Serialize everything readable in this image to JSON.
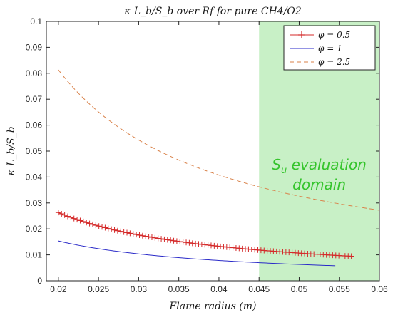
{
  "chart_data": {
    "type": "line",
    "title": "κ L_b/S_b over Rf for pure CH4/O2",
    "xlabel": "Flame radius (m)",
    "ylabel": "κ L_b/S_b",
    "xlim": [
      0.0185,
      0.06
    ],
    "ylim": [
      0,
      0.1
    ],
    "x_ticks": [
      "0.02",
      "0.025",
      "0.03",
      "0.035",
      "0.04",
      "0.045",
      "0.05",
      "0.055",
      "0.06"
    ],
    "y_ticks": [
      "0",
      "0.01",
      "0.02",
      "0.03",
      "0.04",
      "0.05",
      "0.06",
      "0.07",
      "0.08",
      "0.09",
      "0.1"
    ],
    "grid": false,
    "legend_position": "top-right",
    "series": [
      {
        "name": "φ = 0.5",
        "color": "#d42a2a",
        "style": "solid-with-plus-markers",
        "x_range": [
          0.02,
          0.0565
        ],
        "x": [
          0.02,
          0.025,
          0.03,
          0.035,
          0.04,
          0.045,
          0.05,
          0.055,
          0.0565
        ],
        "y": [
          0.0271,
          0.0212,
          0.0173,
          0.0148,
          0.013,
          0.0117,
          0.0107,
          0.0099,
          0.0097
        ]
      },
      {
        "name": "φ = 1",
        "color": "#2a2ac8",
        "style": "solid",
        "x_range": [
          0.02,
          0.0545
        ],
        "x": [
          0.02,
          0.025,
          0.03,
          0.035,
          0.04,
          0.045,
          0.05,
          0.0545
        ],
        "y": [
          0.0157,
          0.0124,
          0.0102,
          0.0087,
          0.0077,
          0.007,
          0.0064,
          0.0059
        ]
      },
      {
        "name": "φ = 2.5",
        "color": "#d9824a",
        "style": "dashed",
        "x_range": [
          0.02,
          0.06
        ],
        "x": [
          0.02,
          0.025,
          0.03,
          0.035,
          0.04,
          0.045,
          0.05,
          0.055,
          0.06
        ],
        "y": [
          0.0805,
          0.0651,
          0.0546,
          0.0469,
          0.041,
          0.0363,
          0.0326,
          0.0296,
          0.027
        ]
      }
    ],
    "shaded_region": {
      "x_range": [
        0.045,
        0.06
      ],
      "color": "#c8f0c6"
    },
    "annotation_line1": "S",
    "annotation_sub": "u",
    "annotation_rest": " evaluation",
    "annotation_line2": "domain",
    "annotation_color": "#35c42c"
  }
}
